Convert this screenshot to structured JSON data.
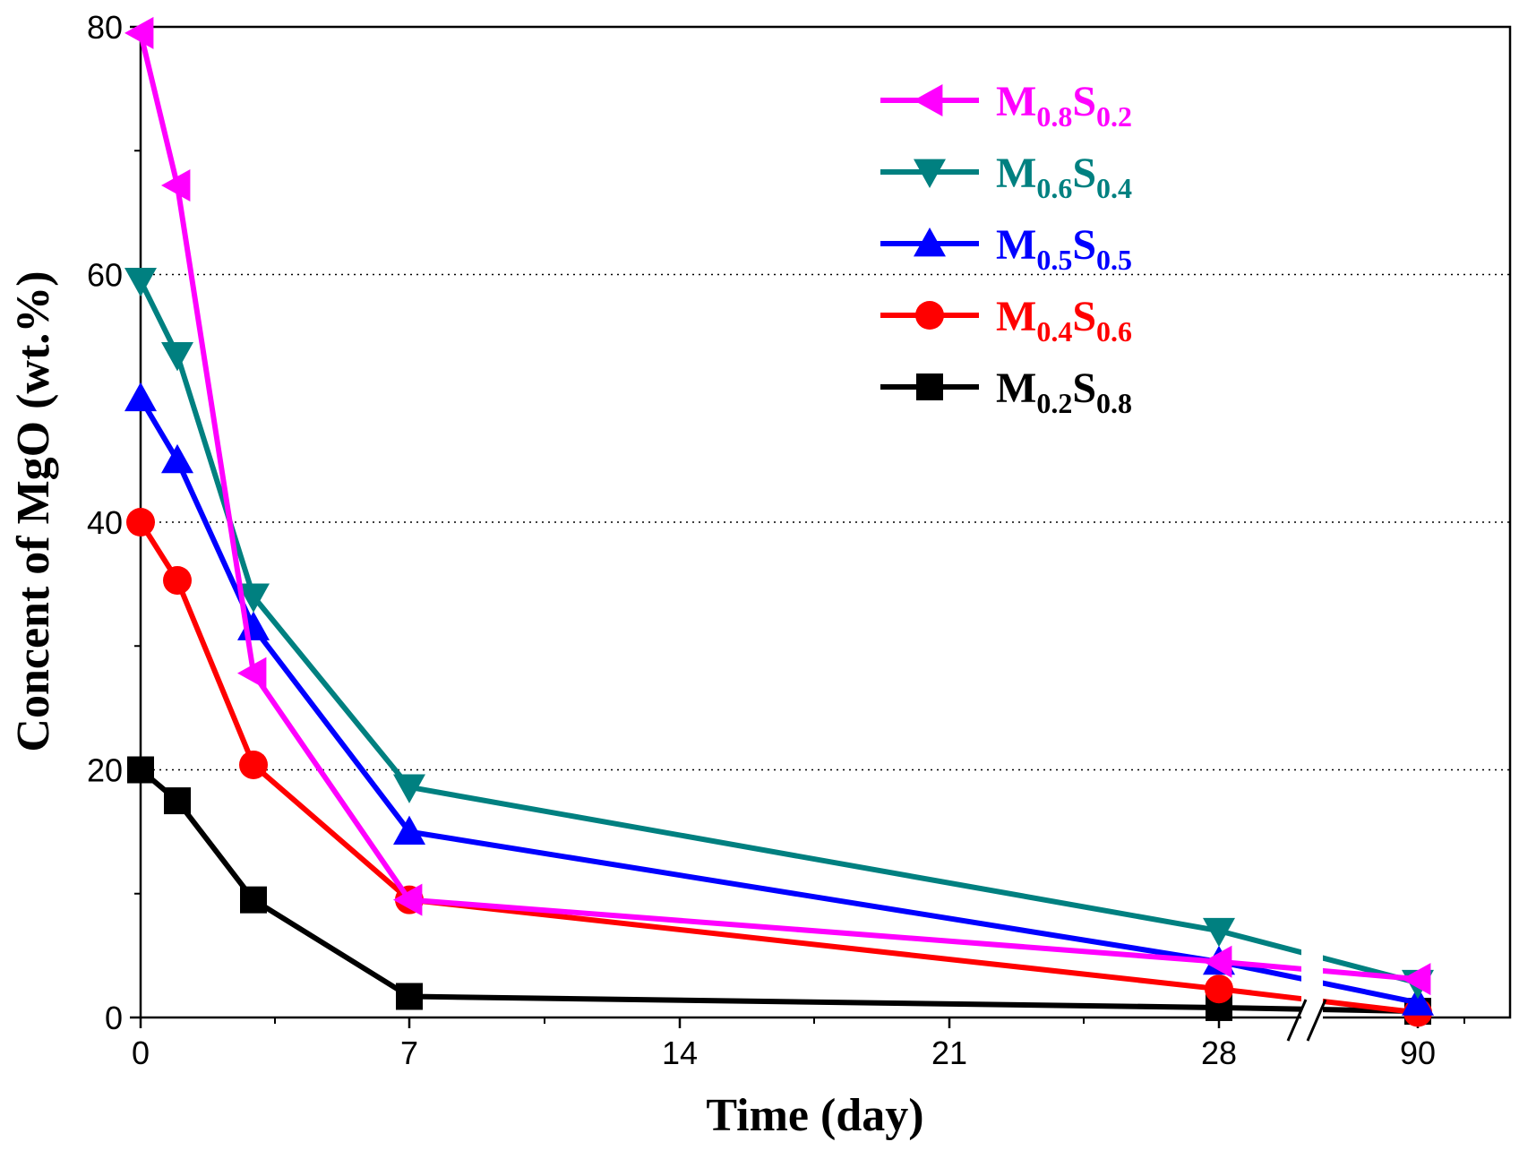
{
  "chart_data": {
    "type": "line",
    "title": "",
    "xlabel": "Time (day)",
    "ylabel": "Concent of MgO (wt.%)",
    "ylim": [
      0,
      80
    ],
    "yticks": [
      "0",
      "20",
      "40",
      "60",
      "80"
    ],
    "xticks": [
      "0",
      "7",
      "14",
      "21",
      "28",
      "90"
    ],
    "x_axis_break": "between 28 and 90",
    "grid": "horizontal dotted lines at 20, 40, 60",
    "legend_position": "top-right",
    "series": [
      {
        "name": "M0.8S0.2",
        "label_parts": [
          "M",
          "0.8",
          "S",
          "0.2"
        ],
        "color": "#FF00FF",
        "marker": "triangle-left",
        "points": [
          {
            "x": "0",
            "y": 79.5
          },
          {
            "x": "1",
            "y": 67.2
          },
          {
            "x": "3",
            "y": 27.8
          },
          {
            "x": "7",
            "y": 9.5
          },
          {
            "x": "28",
            "y": 4.5
          },
          {
            "x": "90",
            "y": 3.1
          }
        ]
      },
      {
        "name": "M0.6S0.4",
        "label_parts": [
          "M",
          "0.6",
          "S",
          "0.4"
        ],
        "color": "#008080",
        "marker": "triangle-down",
        "points": [
          {
            "x": "0",
            "y": 59.5
          },
          {
            "x": "1",
            "y": 53.5
          },
          {
            "x": "3",
            "y": 34.0
          },
          {
            "x": "7",
            "y": 18.6
          },
          {
            "x": "28",
            "y": 7.0
          },
          {
            "x": "90",
            "y": 2.8
          }
        ]
      },
      {
        "name": "M0.5S0.5",
        "label_parts": [
          "M",
          "0.5",
          "S",
          "0.5"
        ],
        "color": "#0000FF",
        "marker": "triangle-up",
        "points": [
          {
            "x": "0",
            "y": 50.0
          },
          {
            "x": "1",
            "y": 45.0
          },
          {
            "x": "3",
            "y": 31.5
          },
          {
            "x": "7",
            "y": 15.0
          },
          {
            "x": "28",
            "y": 4.5
          },
          {
            "x": "90",
            "y": 1.2
          }
        ]
      },
      {
        "name": "M0.4S0.6",
        "label_parts": [
          "M",
          "0.4",
          "S",
          "0.6"
        ],
        "color": "#FF0000",
        "marker": "circle",
        "points": [
          {
            "x": "0",
            "y": 40.0
          },
          {
            "x": "1",
            "y": 35.3
          },
          {
            "x": "3",
            "y": 20.4
          },
          {
            "x": "7",
            "y": 9.5
          },
          {
            "x": "28",
            "y": 2.3
          },
          {
            "x": "90",
            "y": 0.4
          }
        ]
      },
      {
        "name": "M0.2S0.8",
        "label_parts": [
          "M",
          "0.2",
          "S",
          "0.8"
        ],
        "color": "#000000",
        "marker": "square",
        "points": [
          {
            "x": "0",
            "y": 20.0
          },
          {
            "x": "1",
            "y": 17.5
          },
          {
            "x": "3",
            "y": 9.5
          },
          {
            "x": "7",
            "y": 1.7
          },
          {
            "x": "28",
            "y": 0.8
          },
          {
            "x": "90",
            "y": 0.5
          }
        ]
      }
    ]
  }
}
